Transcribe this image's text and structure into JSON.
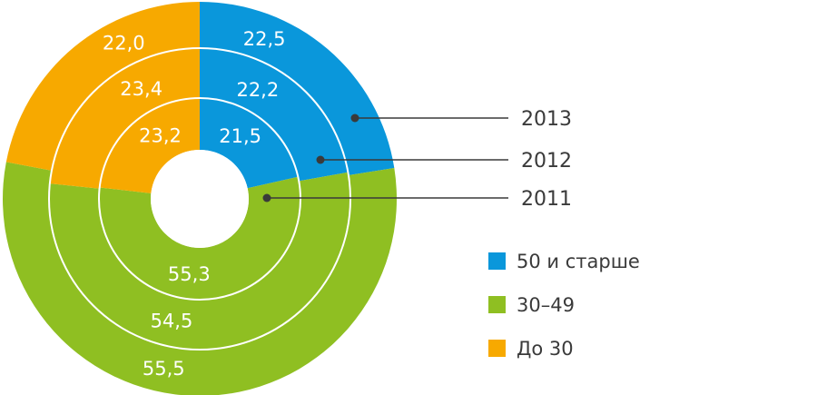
{
  "chart_data": {
    "type": "pie",
    "subtype": "multi-ring donut",
    "rings": [
      {
        "year": "2011",
        "values": {
          "50 и старше": 21.5,
          "30–49": 55.3,
          "До 30": 23.2
        },
        "labels": {
          "50 и старше": "21,5",
          "30–49": "55,3",
          "До 30": "23,2"
        }
      },
      {
        "year": "2012",
        "values": {
          "50 и старше": 22.2,
          "30–49": 54.5,
          "До 30": 23.4
        },
        "labels": {
          "50 и старше": "22,2",
          "30–49": "54,5",
          "До 30": "23,4"
        }
      },
      {
        "year": "2013",
        "values": {
          "50 и старше": 22.5,
          "30–49": 55.5,
          "До 30": 22.0
        },
        "labels": {
          "50 и старше": "22,5",
          "30–49": "55,5",
          "До 30": "22,0"
        }
      }
    ],
    "categories": [
      "50 и старше",
      "30–49",
      "До 30"
    ],
    "colors": {
      "50 и старше": "#0a97db",
      "30–49": "#8fbf22",
      "До 30": "#f7a900"
    },
    "legend": [
      {
        "name": "50 и старше",
        "color": "#0a97db"
      },
      {
        "name": "30–49",
        "color": "#8fbf22"
      },
      {
        "name": "До 30",
        "color": "#f7a900"
      }
    ],
    "legend_position": "right"
  }
}
